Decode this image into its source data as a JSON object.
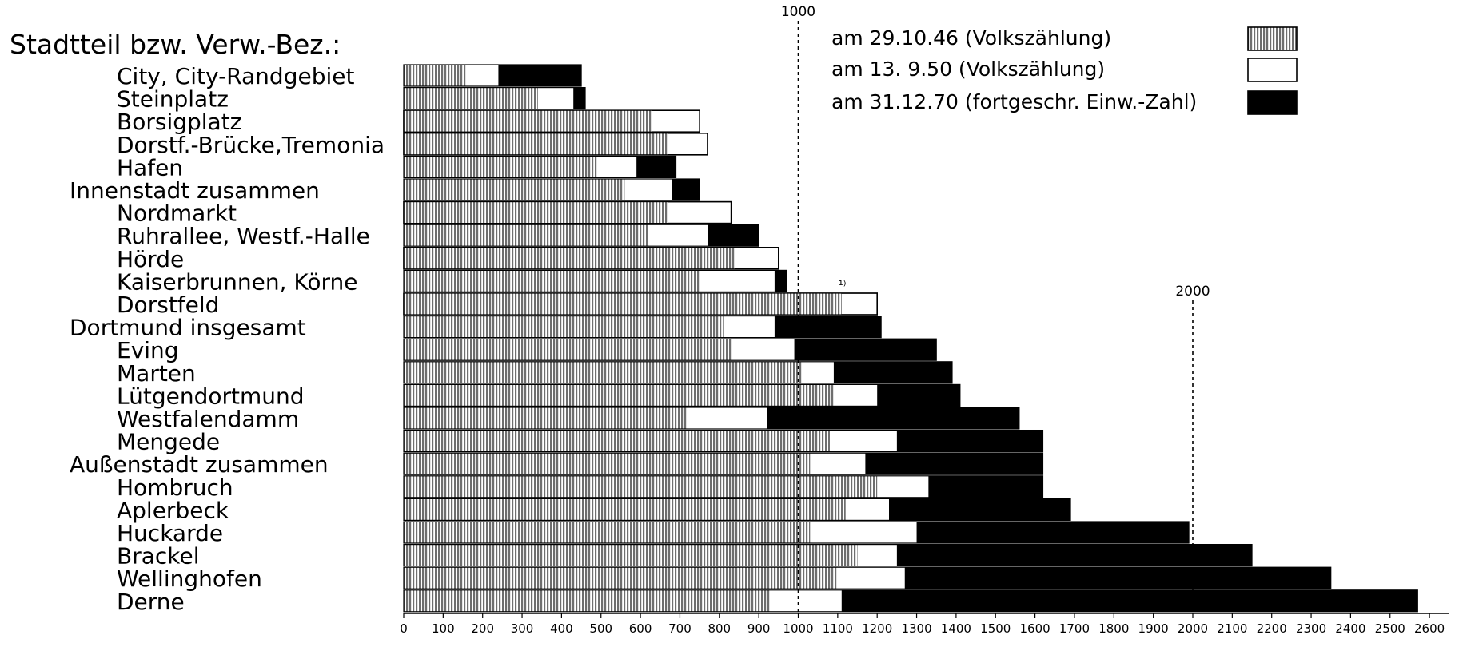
{
  "chart_data": {
    "type": "bar",
    "orientation": "horizontal",
    "category_header": "Stadtteil bzw. Verw.-Bez.:",
    "categories": [
      "City, City-Randgebiet",
      "Steinplatz",
      "Borsigplatz",
      "Dorstf.-Brücke,Tremonia",
      "Hafen",
      "Innenstadt zusammen",
      "Nordmarkt",
      "Ruhrallee, Westf.-Halle",
      "Hörde",
      "Kaiserbrunnen, Körne",
      "Dorstfeld",
      "Dortmund insgesamt",
      "Eving",
      "Marten",
      "Lütgendortmund",
      "Westfalendamm",
      "Mengede",
      "Außenstadt zusammen",
      "Hombruch",
      "Aplerbeck",
      "Huckarde",
      "Brackel",
      "Wellinghofen",
      "Derne"
    ],
    "indented": [
      true,
      true,
      true,
      true,
      true,
      false,
      true,
      true,
      true,
      true,
      true,
      false,
      true,
      true,
      true,
      true,
      true,
      false,
      true,
      true,
      true,
      true,
      true,
      true
    ],
    "series": [
      {
        "name": "am 29.10.46 (Volkszählung)",
        "pattern": "hatched",
        "values": [
          160,
          340,
          630,
          670,
          490,
          560,
          670,
          620,
          840,
          750,
          1110,
          810,
          830,
          1010,
          1090,
          720,
          1080,
          1030,
          1200,
          1120,
          1030,
          1150,
          1100,
          930
        ]
      },
      {
        "name": "am 13. 9.50 (Volkszählung)",
        "pattern": "white",
        "values": [
          240,
          430,
          750,
          770,
          590,
          680,
          830,
          770,
          950,
          940,
          1200,
          940,
          990,
          1090,
          1200,
          920,
          1250,
          1170,
          1330,
          1230,
          1300,
          1250,
          1270,
          1110
        ]
      },
      {
        "name": "am 31.12.70 (fortgeschr. Einw.-Zahl)",
        "pattern": "black",
        "values": [
          450,
          460,
          670,
          670,
          690,
          750,
          780,
          900,
          910,
          970,
          1120,
          1210,
          1350,
          1390,
          1410,
          1560,
          1620,
          1620,
          1620,
          1690,
          1990,
          2150,
          2350,
          2570
        ]
      }
    ],
    "x_ticks": [
      0,
      100,
      200,
      300,
      400,
      500,
      600,
      700,
      800,
      900,
      1000,
      1100,
      1200,
      1300,
      1400,
      1500,
      1600,
      1700,
      1800,
      1900,
      2000,
      2100,
      2200,
      2300,
      2400,
      2500,
      2600
    ],
    "xlim": [
      0,
      2650
    ],
    "reference_lines": [
      {
        "value": 1000,
        "label": "1000"
      },
      {
        "value": 2000,
        "label": "2000"
      }
    ],
    "footnote_mark": "¹⁾",
    "legend_position": "top-right",
    "colors": {
      "ink": "#000000",
      "paper": "#ffffff",
      "hatch": "#7a7a7a"
    },
    "xlabel": "",
    "ylabel": "",
    "title": ""
  }
}
